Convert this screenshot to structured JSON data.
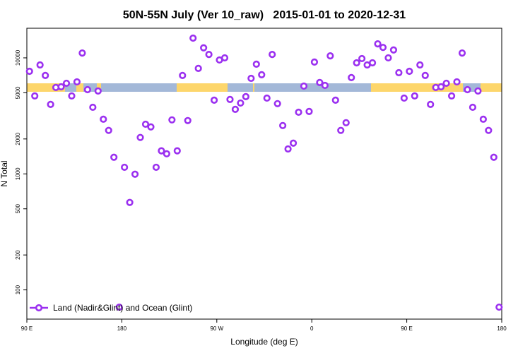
{
  "chart_data": {
    "type": "scatter",
    "title": "50N-55N July (Ver 10_raw)   2015-01-01 to 2020-12-31",
    "xlabel": "Longitude (deg E)",
    "ylabel": "N Total",
    "log_y": true,
    "legend": "bottomleft",
    "xlim": [
      90,
      540
    ],
    "xticks": [
      {
        "value": 90,
        "label": "90 E"
      },
      {
        "value": 180,
        "label": "180"
      },
      {
        "value": 270,
        "label": "90 W"
      },
      {
        "value": 360,
        "label": "0"
      },
      {
        "value": 450,
        "label": "90 E"
      },
      {
        "value": 540,
        "label": "180"
      }
    ],
    "ylim": [
      56,
      18000
    ],
    "yticks": [
      100,
      200,
      500,
      1000,
      2000,
      5000,
      10000
    ],
    "series": [
      {
        "name": "Land (Nadir&Glint) and Ocean (Glint)",
        "color": "#9b30f0",
        "x": [
          92.5,
          97.5,
          102.5,
          107.5,
          112.5,
          117.5,
          122.5,
          127.5,
          132.5,
          137.5,
          142.5,
          147.5,
          152.5,
          157.5,
          162.5,
          167.5,
          172.5,
          177.5,
          182.5,
          187.5,
          192.5,
          197.5,
          202.5,
          207.5,
          212.5,
          217.5,
          222.5,
          227.5,
          232.5,
          237.5,
          242.5,
          247.5,
          252.5,
          257.5,
          262.5,
          267.5,
          272.5,
          277.5,
          282.5,
          287.5,
          292.5,
          297.5,
          302.5,
          307.5,
          312.5,
          317.5,
          322.5,
          327.5,
          332.5,
          337.5,
          342.5,
          347.5,
          352.5,
          357.5,
          362.5,
          367.5,
          372.5,
          377.5,
          382.5,
          387.5,
          392.5,
          397.5,
          402.5,
          407.5,
          412.5,
          417.5,
          422.5,
          427.5,
          432.5,
          437.5,
          442.5,
          447.5,
          452.5,
          457.5,
          462.5,
          467.5,
          472.5,
          477.5,
          482.5,
          487.5,
          492.5,
          497.5,
          502.5,
          507.5,
          512.5,
          517.5,
          522.5,
          527.5,
          532.5,
          537.5
        ],
        "values": [
          7660,
          4700,
          8690,
          7050,
          3970,
          5560,
          5630,
          6040,
          4700,
          6210,
          11000,
          5320,
          3750,
          5180,
          2960,
          2370,
          1390,
          71,
          1140,
          567,
          993,
          2060,
          2680,
          2540,
          1140,
          1580,
          1490,
          2920,
          1580,
          7050,
          2880,
          14800,
          8110,
          12200,
          10700,
          4320,
          9590,
          10000,
          4380,
          3600,
          4080,
          4630,
          6660,
          8820,
          7150,
          4500,
          10700,
          4030,
          2610,
          1640,
          1840,
          3400,
          5710,
          3450,
          9200,
          6130,
          5790,
          10400,
          4320,
          2370,
          2760,
          6760,
          9060,
          9860,
          8690,
          9060,
          13200,
          12300,
          10000,
          11700,
          7450,
          4500,
          7660,
          4700,
          8690,
          7050,
          3970,
          5560,
          5630,
          6040,
          4700,
          6210,
          11000,
          5320,
          3750,
          5180,
          2960,
          2370,
          1390,
          71
        ]
      }
    ]
  }
}
